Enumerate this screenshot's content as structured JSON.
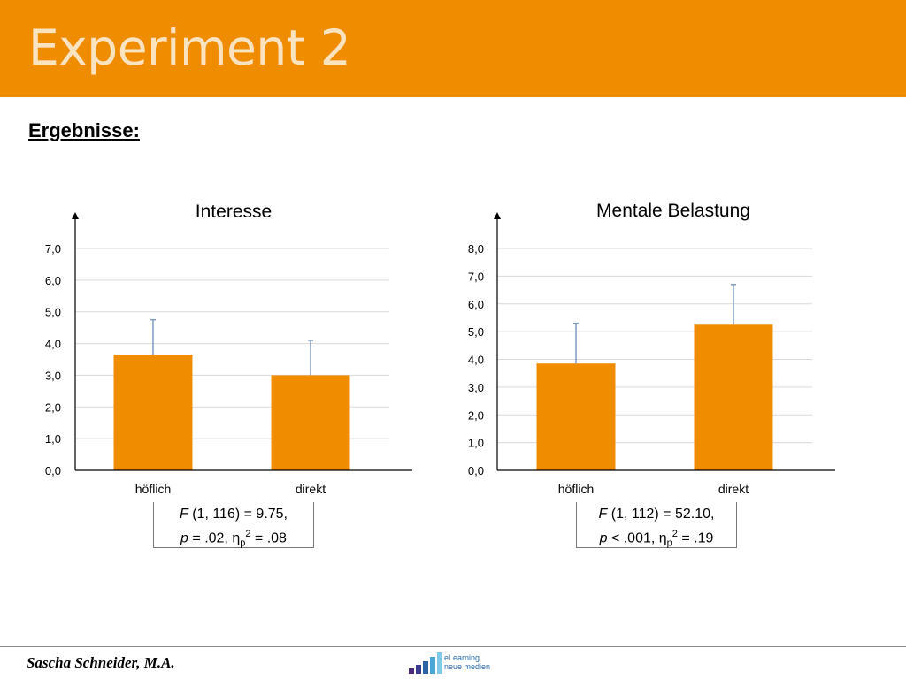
{
  "slide": {
    "title": "Experiment 2",
    "section_heading": "Ergebnisse:"
  },
  "colors": {
    "header": "#f08c00",
    "bar": "#f08c00",
    "error_bar": "#7f9bbf",
    "grid": "#d9d9d9"
  },
  "chart_data": [
    {
      "type": "bar",
      "title": "Interesse",
      "categories": [
        "höflich",
        "direkt"
      ],
      "values": [
        3.65,
        3.0
      ],
      "error_upper": [
        4.75,
        4.1
      ],
      "ylim": [
        0,
        7
      ],
      "yticks": [
        "0,0",
        "1,0",
        "2,0",
        "3,0",
        "4,0",
        "5,0",
        "6,0",
        "7,0"
      ],
      "grid": true,
      "stats": {
        "line1_italic": "F",
        "line1_rest": " (1, 116) = 9.75,",
        "line2_italic": "p",
        "line2_rest": " = .02, η",
        "sub": "p",
        "sup": "2",
        "line2_tail": " = .08"
      }
    },
    {
      "type": "bar",
      "title": "Mentale Belastung",
      "categories": [
        "höflich",
        "direkt"
      ],
      "values": [
        3.85,
        5.25
      ],
      "error_upper": [
        5.3,
        6.7
      ],
      "ylim": [
        0,
        8
      ],
      "yticks": [
        "0,0",
        "1,0",
        "2,0",
        "3,0",
        "4,0",
        "5,0",
        "6,0",
        "7,0",
        "8,0"
      ],
      "grid": true,
      "stats": {
        "line1_italic": "F",
        "line1_rest": " (1, 112) = 52.10,",
        "line2_italic": "p",
        "line2_rest": " < .001, η",
        "sub": "p",
        "sup": "2",
        "line2_tail": " = .19"
      }
    }
  ],
  "footer": {
    "author": "Sascha Schneider, M.A.",
    "logo_line1": "eLearning",
    "logo_line2": "neue medien",
    "logo_icon": "bar-chart-logo"
  }
}
